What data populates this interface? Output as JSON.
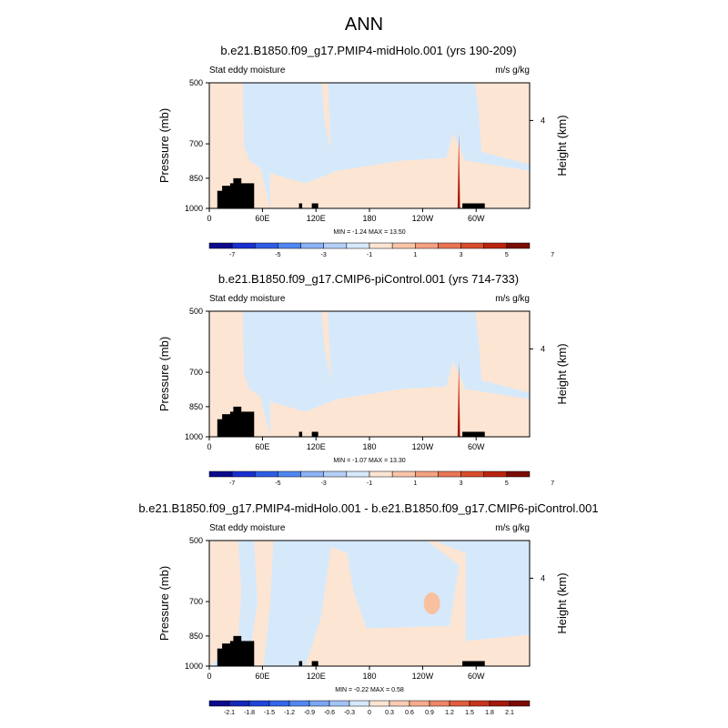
{
  "main_title": "ANN",
  "colors": {
    "neg_fill": "#d6e9fb",
    "pos_fill": "#fde5d3",
    "pos_mid": "#f9c0a0",
    "pos_strong": "#cc2b12",
    "pos_max": "#7a0b05",
    "topography": "#000000"
  },
  "chart_data": [
    {
      "type": "heatmap",
      "title": "b.e21.B1850.f09_g17.PMIP4-midHolo.001 (yrs 190-209)",
      "left_label": "Stat eddy moisture",
      "right_label": "m/s g/kg",
      "ylabel": "Pressure (mb)",
      "ylabel_right": "Height (km)",
      "x_ticks": [
        "0",
        "60E",
        "120E",
        "180",
        "120W",
        "60W"
      ],
      "y_ticks": [
        "500",
        "700",
        "850",
        "1000"
      ],
      "y_ticks_right": [
        "4"
      ],
      "minmax": "MIN =  -1.24   MAX =  13.50",
      "colorbar_labels": [
        "-7",
        "-5",
        "-3",
        "-1",
        "1",
        "3",
        "5",
        "7"
      ],
      "colorbar_colors": [
        "#0c0a8c",
        "#1a2fcf",
        "#2f5ce6",
        "#4f86f0",
        "#8db2f5",
        "#b6cff7",
        "#d6e9fb",
        "#fde5d3",
        "#f9c4a8",
        "#f4a182",
        "#ea7454",
        "#d94b2d",
        "#b9240f",
        "#7a0b05"
      ]
    },
    {
      "type": "heatmap",
      "title": "b.e21.B1850.f09_g17.CMIP6-piControl.001 (yrs 714-733)",
      "left_label": "Stat eddy moisture",
      "right_label": "m/s g/kg",
      "ylabel": "Pressure (mb)",
      "ylabel_right": "Height (km)",
      "x_ticks": [
        "0",
        "60E",
        "120E",
        "180",
        "120W",
        "60W"
      ],
      "y_ticks": [
        "500",
        "700",
        "850",
        "1000"
      ],
      "y_ticks_right": [
        "4"
      ],
      "minmax": "MIN =  -1.07   MAX =  13.30",
      "colorbar_labels": [
        "-7",
        "-5",
        "-3",
        "-1",
        "1",
        "3",
        "5",
        "7"
      ],
      "colorbar_colors": [
        "#0c0a8c",
        "#1a2fcf",
        "#2f5ce6",
        "#4f86f0",
        "#8db2f5",
        "#b6cff7",
        "#d6e9fb",
        "#fde5d3",
        "#f9c4a8",
        "#f4a182",
        "#ea7454",
        "#d94b2d",
        "#b9240f",
        "#7a0b05"
      ]
    },
    {
      "type": "heatmap",
      "title": "b.e21.B1850.f09_g17.PMIP4-midHolo.001 - b.e21.B1850.f09_g17.CMIP6-piControl.001",
      "left_label": "Stat eddy moisture",
      "right_label": "m/s g/kg",
      "ylabel": "Pressure (mb)",
      "ylabel_right": "Height (km)",
      "x_ticks": [
        "0",
        "60E",
        "120E",
        "180",
        "120W",
        "60W"
      ],
      "y_ticks": [
        "500",
        "700",
        "850",
        "1000"
      ],
      "y_ticks_right": [
        "4"
      ],
      "minmax": "MIN =  -0.22   MAX =   0.58",
      "colorbar_labels": [
        "-2.1",
        "-1.8",
        "-1.5",
        "-1.2",
        "-0.9",
        "-0.6",
        "-0.3",
        "0",
        "0.3",
        "0.6",
        "0.9",
        "1.2",
        "1.5",
        "1.8",
        "2.1"
      ],
      "colorbar_colors": [
        "#0c0a8c",
        "#1327b8",
        "#1f45da",
        "#3466ea",
        "#5287f1",
        "#7aa6f4",
        "#a3c3f7",
        "#d6e9fb",
        "#fde5d3",
        "#fbccb3",
        "#f6ab8e",
        "#ee8566",
        "#e05c3e",
        "#c83520",
        "#a51a0c",
        "#7a0b05"
      ]
    }
  ]
}
